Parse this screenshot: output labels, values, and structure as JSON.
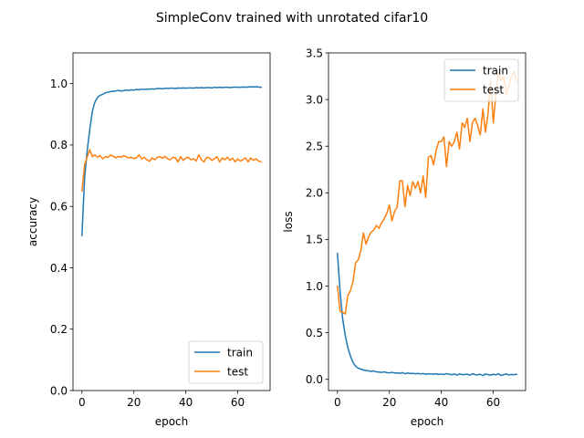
{
  "figure": {
    "title": "SimpleConv trained with unrotated cifar10"
  },
  "colors": {
    "train": "#1f77b4",
    "test": "#ff7f0e"
  },
  "chart_data": [
    {
      "type": "line",
      "xlabel": "epoch",
      "ylabel": "accuracy",
      "xlim": [
        -3.45,
        72.45
      ],
      "ylim": [
        0.0,
        1.1
      ],
      "xticks": [
        0,
        20,
        40,
        60
      ],
      "xtick_labels": [
        "0",
        "20",
        "40",
        "60"
      ],
      "yticks": [
        0.0,
        0.2,
        0.4,
        0.6,
        0.8,
        1.0
      ],
      "ytick_labels": [
        "0.0",
        "0.2",
        "0.4",
        "0.6",
        "0.8",
        "1.0"
      ],
      "legend_position": "lower right",
      "grid": false,
      "series": [
        {
          "name": "train",
          "color": "#1f77b4",
          "x": [
            0,
            1,
            2,
            3,
            4,
            5,
            6,
            7,
            8,
            9,
            10,
            11,
            12,
            13,
            14,
            15,
            16,
            17,
            18,
            19,
            20,
            21,
            22,
            23,
            24,
            25,
            26,
            27,
            28,
            29,
            30,
            31,
            32,
            33,
            34,
            35,
            36,
            37,
            38,
            39,
            40,
            41,
            42,
            43,
            44,
            45,
            46,
            47,
            48,
            49,
            50,
            51,
            52,
            53,
            54,
            55,
            56,
            57,
            58,
            59,
            60,
            61,
            62,
            63,
            64,
            65,
            66,
            67,
            68,
            69
          ],
          "y": [
            0.505,
            0.69,
            0.78,
            0.85,
            0.91,
            0.94,
            0.955,
            0.962,
            0.965,
            0.97,
            0.972,
            0.974,
            0.975,
            0.976,
            0.978,
            0.976,
            0.977,
            0.979,
            0.978,
            0.98,
            0.979,
            0.981,
            0.98,
            0.982,
            0.981,
            0.982,
            0.982,
            0.983,
            0.982,
            0.984,
            0.984,
            0.983,
            0.985,
            0.984,
            0.985,
            0.985,
            0.984,
            0.986,
            0.985,
            0.986,
            0.985,
            0.986,
            0.986,
            0.985,
            0.987,
            0.986,
            0.987,
            0.986,
            0.987,
            0.987,
            0.986,
            0.988,
            0.987,
            0.988,
            0.987,
            0.988,
            0.988,
            0.987,
            0.988,
            0.989,
            0.988,
            0.988,
            0.989,
            0.988,
            0.989,
            0.99,
            0.989,
            0.99,
            0.989,
            0.988
          ]
        },
        {
          "name": "test",
          "color": "#ff7f0e",
          "x": [
            0,
            1,
            2,
            3,
            4,
            5,
            6,
            7,
            8,
            9,
            10,
            11,
            12,
            13,
            14,
            15,
            16,
            17,
            18,
            19,
            20,
            21,
            22,
            23,
            24,
            25,
            26,
            27,
            28,
            29,
            30,
            31,
            32,
            33,
            34,
            35,
            36,
            37,
            38,
            39,
            40,
            41,
            42,
            43,
            44,
            45,
            46,
            47,
            48,
            49,
            50,
            51,
            52,
            53,
            54,
            55,
            56,
            57,
            58,
            59,
            60,
            61,
            62,
            63,
            64,
            65,
            66,
            67,
            68,
            69
          ],
          "y": [
            0.65,
            0.735,
            0.76,
            0.785,
            0.762,
            0.768,
            0.76,
            0.765,
            0.755,
            0.762,
            0.76,
            0.767,
            0.764,
            0.758,
            0.763,
            0.76,
            0.765,
            0.762,
            0.758,
            0.76,
            0.756,
            0.758,
            0.768,
            0.755,
            0.76,
            0.752,
            0.747,
            0.758,
            0.752,
            0.76,
            0.762,
            0.757,
            0.763,
            0.755,
            0.752,
            0.76,
            0.758,
            0.745,
            0.762,
            0.75,
            0.757,
            0.76,
            0.752,
            0.755,
            0.748,
            0.768,
            0.752,
            0.745,
            0.76,
            0.758,
            0.75,
            0.755,
            0.762,
            0.745,
            0.758,
            0.752,
            0.76,
            0.75,
            0.757,
            0.745,
            0.755,
            0.748,
            0.752,
            0.758,
            0.745,
            0.758,
            0.75,
            0.755,
            0.748,
            0.745
          ]
        }
      ]
    },
    {
      "type": "line",
      "xlabel": "epoch",
      "ylabel": "loss",
      "xlim": [
        -3.45,
        72.45
      ],
      "ylim": [
        -0.12,
        3.5
      ],
      "xticks": [
        0,
        20,
        40,
        60
      ],
      "xtick_labels": [
        "0",
        "20",
        "40",
        "60"
      ],
      "yticks": [
        0.0,
        0.5,
        1.0,
        1.5,
        2.0,
        2.5,
        3.0,
        3.5
      ],
      "ytick_labels": [
        "0.0",
        "0.5",
        "1.0",
        "1.5",
        "2.0",
        "2.5",
        "3.0",
        "3.5"
      ],
      "legend_position": "upper right",
      "grid": false,
      "series": [
        {
          "name": "train",
          "color": "#1f77b4",
          "x": [
            0,
            1,
            2,
            3,
            4,
            5,
            6,
            7,
            8,
            9,
            10,
            11,
            12,
            13,
            14,
            15,
            16,
            17,
            18,
            19,
            20,
            21,
            22,
            23,
            24,
            25,
            26,
            27,
            28,
            29,
            30,
            31,
            32,
            33,
            34,
            35,
            36,
            37,
            38,
            39,
            40,
            41,
            42,
            43,
            44,
            45,
            46,
            47,
            48,
            49,
            50,
            51,
            52,
            53,
            54,
            55,
            56,
            57,
            58,
            59,
            60,
            61,
            62,
            63,
            64,
            65,
            66,
            67,
            68,
            69
          ],
          "y": [
            1.35,
            0.95,
            0.65,
            0.47,
            0.34,
            0.25,
            0.18,
            0.14,
            0.12,
            0.11,
            0.1,
            0.095,
            0.09,
            0.085,
            0.09,
            0.08,
            0.078,
            0.075,
            0.08,
            0.072,
            0.07,
            0.075,
            0.068,
            0.07,
            0.065,
            0.072,
            0.06,
            0.068,
            0.062,
            0.065,
            0.06,
            0.063,
            0.058,
            0.062,
            0.055,
            0.06,
            0.058,
            0.055,
            0.06,
            0.052,
            0.058,
            0.05,
            0.062,
            0.055,
            0.05,
            0.058,
            0.045,
            0.06,
            0.05,
            0.052,
            0.055,
            0.045,
            0.06,
            0.05,
            0.048,
            0.055,
            0.04,
            0.058,
            0.05,
            0.045,
            0.055,
            0.048,
            0.06,
            0.042,
            0.05,
            0.058,
            0.048,
            0.052,
            0.05,
            0.055
          ]
        },
        {
          "name": "test",
          "color": "#ff7f0e",
          "x": [
            0,
            1,
            2,
            3,
            4,
            5,
            6,
            7,
            8,
            9,
            10,
            11,
            12,
            13,
            14,
            15,
            16,
            17,
            18,
            19,
            20,
            21,
            22,
            23,
            24,
            25,
            26,
            27,
            28,
            29,
            30,
            31,
            32,
            33,
            34,
            35,
            36,
            37,
            38,
            39,
            40,
            41,
            42,
            43,
            44,
            45,
            46,
            47,
            48,
            49,
            50,
            51,
            52,
            53,
            54,
            55,
            56,
            57,
            58,
            59,
            60,
            61,
            62,
            63,
            64,
            65,
            66,
            67,
            68,
            69
          ],
          "y": [
            1.0,
            0.73,
            0.72,
            0.7,
            0.9,
            0.95,
            1.05,
            1.25,
            1.28,
            1.38,
            1.57,
            1.45,
            1.53,
            1.58,
            1.6,
            1.65,
            1.62,
            1.68,
            1.72,
            1.78,
            1.87,
            1.7,
            1.8,
            1.85,
            2.13,
            2.13,
            1.85,
            2.08,
            1.97,
            2.12,
            2.05,
            2.12,
            2.0,
            2.18,
            1.95,
            2.38,
            2.4,
            2.3,
            2.45,
            2.55,
            2.55,
            2.6,
            2.28,
            2.55,
            2.5,
            2.55,
            2.65,
            2.47,
            2.75,
            2.7,
            2.8,
            2.55,
            2.75,
            2.8,
            2.72,
            2.62,
            2.9,
            2.65,
            2.85,
            3.2,
            2.75,
            3.05,
            3.3,
            3.2,
            3.25,
            3.05,
            3.15,
            3.25,
            3.3,
            3.2
          ]
        }
      ]
    }
  ]
}
